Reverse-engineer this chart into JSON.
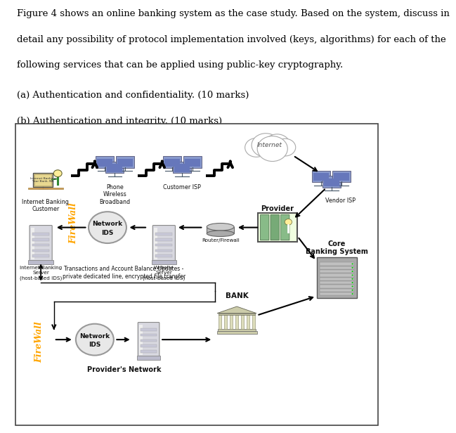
{
  "line1": "Figure 4 shows an online banking system as the case study. Based on the system, discuss in",
  "line2": "detail any possibility of protocol implementation involved (keys, algorithms) for each of the",
  "line3": "following services that can be applied using public-key cryptography.",
  "item_a": "(a) Authentication and confidentiality. (10 marks)",
  "item_b": "(b) Authentication and integrity. (10 marks)",
  "bg_color": "#ffffff",
  "text_color": "#000000",
  "font_family": "DejaVu Serif",
  "font_size_body": 9.5,
  "fig_width": 5.4,
  "fig_height": 6.03,
  "firewall_color": "#FFA500",
  "diagram_bg": "#f5f5f5"
}
